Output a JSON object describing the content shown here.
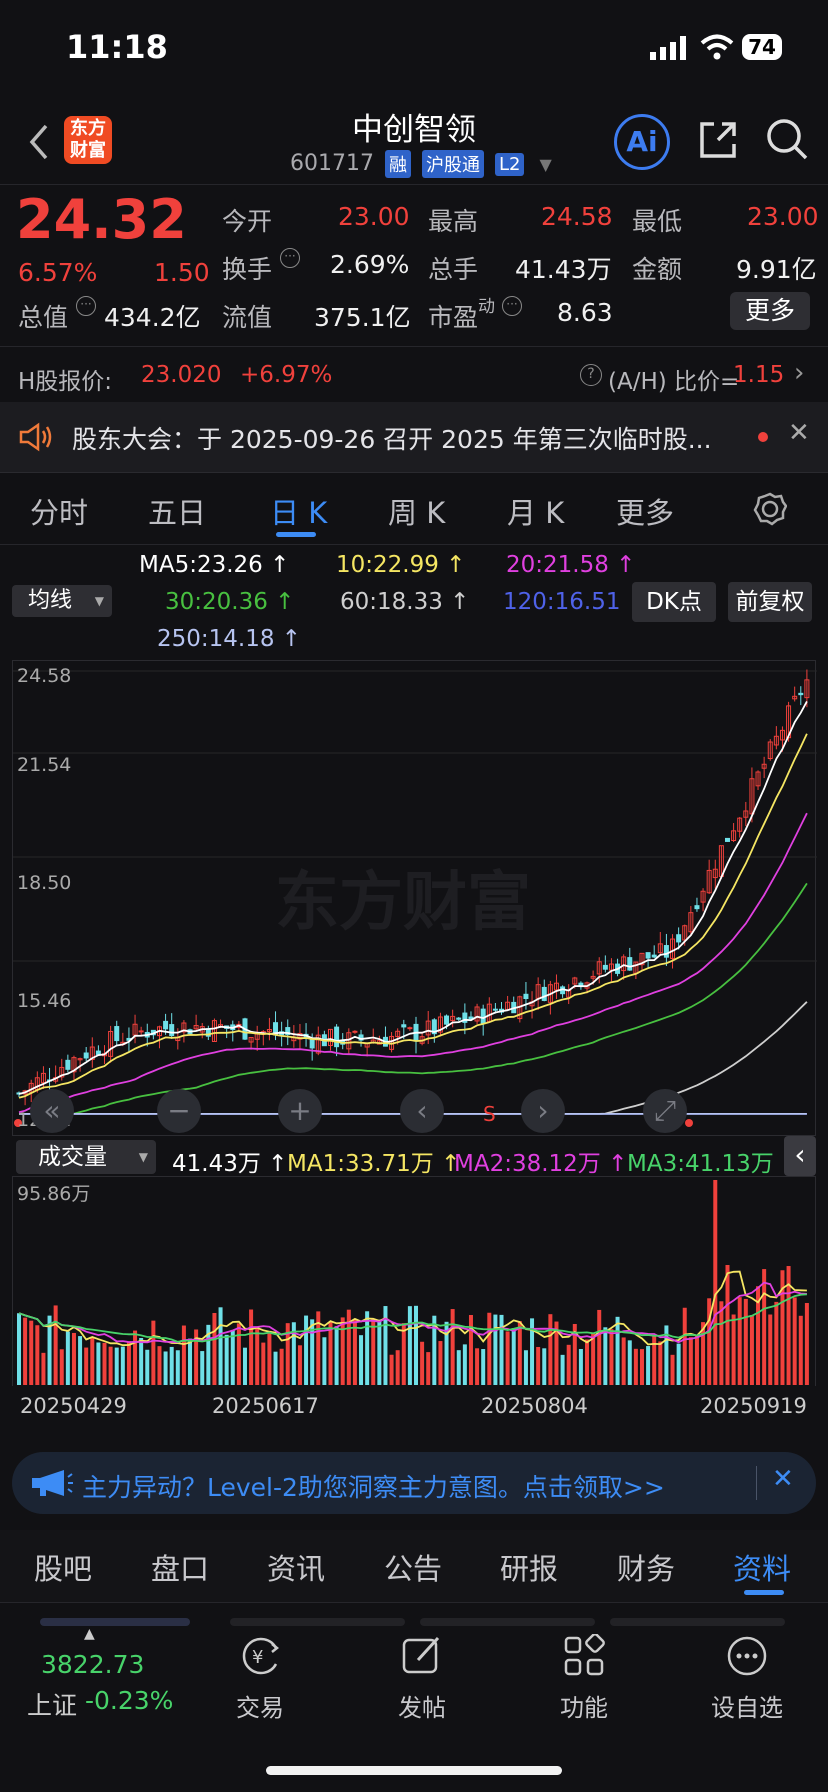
{
  "status": {
    "time": "11:18",
    "battery": "74"
  },
  "header": {
    "name": "中创智领",
    "code": "601717",
    "tags": [
      "融",
      "沪股通",
      "L2"
    ],
    "logo": "东方\n财富",
    "ai_label": "Ai"
  },
  "quote": {
    "price": "24.32",
    "change_pct": "6.57%",
    "change": "1.50",
    "open_label": "今开",
    "open": "23.00",
    "high_label": "最高",
    "high": "24.58",
    "low_label": "最低",
    "low": "23.00",
    "turnover_label": "换手",
    "turnover": "2.69%",
    "volume_label": "总手",
    "volume": "41.43万",
    "amount_label": "金额",
    "amount": "9.91亿",
    "mcap_label": "总值",
    "mcap": "434.2亿",
    "float_label": "流值",
    "float": "375.1亿",
    "pe_label": "市盈",
    "pe_sup": "动",
    "pe": "8.63",
    "more_label": "更多"
  },
  "hshare": {
    "label": "H股报价:",
    "price": "23.020",
    "pct": "+6.97%",
    "ratio_label": "(A/H) 比价=",
    "ratio": "1.15"
  },
  "notice": {
    "text": "股东大会：于 2025-09-26 召开 2025 年第三次临时股..."
  },
  "periods": [
    "分时",
    "五日",
    "日 K",
    "周 K",
    "月 K",
    "更多"
  ],
  "ma": {
    "selector": "均线",
    "ma5": "MA5:23.26 ↑",
    "ma10": "10:22.99 ↑",
    "ma20": "20:21.58 ↑",
    "ma30": "30:20.36 ↑",
    "ma60": "60:18.33 ↑",
    "ma120": "120:16.51 ↑",
    "ma250": "250:14.18 ↑",
    "dk": "DK点",
    "fq": "前复权"
  },
  "price_axis": [
    "24.58",
    "21.54",
    "18.50",
    "15.46",
    "12.42"
  ],
  "watermark": "东方财富",
  "volume": {
    "selector": "成交量",
    "vol": "41.43万 ↑",
    "ma1": "MA1:33.71万 ↑",
    "ma2": "MA2:38.12万 ↑",
    "ma3": "MA3:41.13万 ↑",
    "max": "95.86万"
  },
  "dates": [
    "20250429",
    "20250617",
    "20250804",
    "20250919"
  ],
  "banner": {
    "text": "主力异动？Level-2助您洞察主力意图。点击领取>>"
  },
  "bottom_tabs": [
    "股吧",
    "盘口",
    "资讯",
    "公告",
    "研报",
    "财务",
    "资料"
  ],
  "index": {
    "value": "3822.73",
    "name": "上证",
    "pct": "-0.23%"
  },
  "toolbar": [
    "交易",
    "发帖",
    "功能",
    "设自选"
  ],
  "colors": {
    "up": "#f0413c",
    "down": "#6fe0e8",
    "ma5": "#ffffff",
    "ma10": "#f5e663",
    "ma20": "#e040e0",
    "ma30": "#48c040",
    "ma60": "#cfcfcf",
    "ma120": "#3a4fd8",
    "ma250": "#b7c4f0",
    "accent": "#3d8cf5"
  }
}
